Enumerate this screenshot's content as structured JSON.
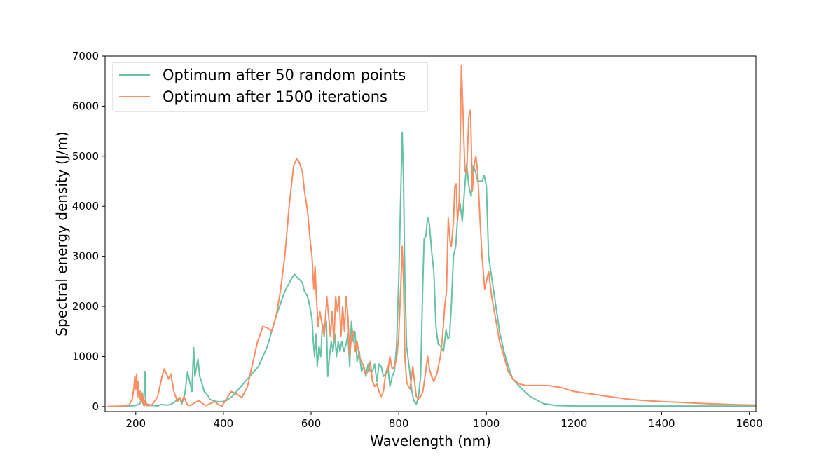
{
  "chart_data": {
    "type": "line",
    "title": "",
    "xlabel": "Wavelength (nm)",
    "ylabel": "Spectral energy density (J/m)",
    "xlim": [
      130,
      1615
    ],
    "ylim": [
      -100,
      7000
    ],
    "xticks": [
      200,
      400,
      600,
      800,
      1000,
      1200,
      1400,
      1600
    ],
    "yticks": [
      0,
      1000,
      2000,
      3000,
      4000,
      5000,
      6000,
      7000
    ],
    "grid": false,
    "legend_position": "top-left",
    "series": [
      {
        "name": "Optimum after 50 random points",
        "color": "#66c2a5",
        "points": [
          [
            135,
            0
          ],
          [
            180,
            10
          ],
          [
            200,
            20
          ],
          [
            210,
            60
          ],
          [
            215,
            250
          ],
          [
            218,
            20
          ],
          [
            221,
            700
          ],
          [
            223,
            100
          ],
          [
            226,
            20
          ],
          [
            240,
            20
          ],
          [
            250,
            10
          ],
          [
            258,
            40
          ],
          [
            270,
            30
          ],
          [
            280,
            40
          ],
          [
            290,
            100
          ],
          [
            300,
            180
          ],
          [
            305,
            50
          ],
          [
            312,
            250
          ],
          [
            318,
            700
          ],
          [
            323,
            500
          ],
          [
            328,
            300
          ],
          [
            332,
            1180
          ],
          [
            335,
            600
          ],
          [
            339,
            800
          ],
          [
            342,
            950
          ],
          [
            346,
            600
          ],
          [
            350,
            500
          ],
          [
            356,
            300
          ],
          [
            362,
            250
          ],
          [
            370,
            140
          ],
          [
            380,
            110
          ],
          [
            390,
            90
          ],
          [
            405,
            110
          ],
          [
            420,
            200
          ],
          [
            440,
            400
          ],
          [
            460,
            600
          ],
          [
            480,
            800
          ],
          [
            500,
            1200
          ],
          [
            520,
            1800
          ],
          [
            540,
            2300
          ],
          [
            555,
            2550
          ],
          [
            562,
            2640
          ],
          [
            568,
            2580
          ],
          [
            575,
            2520
          ],
          [
            580,
            2480
          ],
          [
            585,
            2300
          ],
          [
            592,
            2200
          ],
          [
            597,
            2000
          ],
          [
            602,
            1750
          ],
          [
            605,
            1300
          ],
          [
            608,
            1000
          ],
          [
            611,
            1450
          ],
          [
            614,
            800
          ],
          [
            618,
            1200
          ],
          [
            622,
            1000
          ],
          [
            626,
            1650
          ],
          [
            630,
            1500
          ],
          [
            635,
            1700
          ],
          [
            638,
            600
          ],
          [
            642,
            1000
          ],
          [
            646,
            1300
          ],
          [
            650,
            1100
          ],
          [
            654,
            1450
          ],
          [
            658,
            1000
          ],
          [
            662,
            1300
          ],
          [
            666,
            1100
          ],
          [
            670,
            1300
          ],
          [
            675,
            1100
          ],
          [
            680,
            1250
          ],
          [
            684,
            1450
          ],
          [
            688,
            800
          ],
          [
            692,
            1700
          ],
          [
            696,
            1300
          ],
          [
            700,
            1500
          ],
          [
            705,
            900
          ],
          [
            710,
            1100
          ],
          [
            715,
            700
          ],
          [
            720,
            800
          ],
          [
            725,
            600
          ],
          [
            730,
            850
          ],
          [
            735,
            700
          ],
          [
            740,
            700
          ],
          [
            745,
            850
          ],
          [
            750,
            500
          ],
          [
            755,
            850
          ],
          [
            760,
            800
          ],
          [
            765,
            600
          ],
          [
            770,
            650
          ],
          [
            775,
            800
          ],
          [
            780,
            400
          ],
          [
            785,
            600
          ],
          [
            790,
            700
          ],
          [
            795,
            1200
          ],
          [
            800,
            2500
          ],
          [
            804,
            4000
          ],
          [
            808,
            5480
          ],
          [
            811,
            4500
          ],
          [
            814,
            2500
          ],
          [
            818,
            1200
          ],
          [
            825,
            700
          ],
          [
            830,
            300
          ],
          [
            835,
            100
          ],
          [
            840,
            50
          ],
          [
            845,
            200
          ],
          [
            850,
            600
          ],
          [
            855,
            2500
          ],
          [
            858,
            3350
          ],
          [
            862,
            3400
          ],
          [
            866,
            3780
          ],
          [
            870,
            3650
          ],
          [
            875,
            3100
          ],
          [
            880,
            2700
          ],
          [
            885,
            1600
          ],
          [
            890,
            1250
          ],
          [
            896,
            1200
          ],
          [
            902,
            1100
          ],
          [
            908,
            1530
          ],
          [
            912,
            1350
          ],
          [
            916,
            1400
          ],
          [
            920,
            2000
          ],
          [
            925,
            3000
          ],
          [
            930,
            3200
          ],
          [
            935,
            3850
          ],
          [
            940,
            4050
          ],
          [
            945,
            3700
          ],
          [
            950,
            4300
          ],
          [
            955,
            4850
          ],
          [
            960,
            4400
          ],
          [
            965,
            4200
          ],
          [
            970,
            4800
          ],
          [
            975,
            4700
          ],
          [
            980,
            4500
          ],
          [
            990,
            4500
          ],
          [
            995,
            4620
          ],
          [
            1000,
            4400
          ],
          [
            1005,
            3000
          ],
          [
            1010,
            2700
          ],
          [
            1020,
            2100
          ],
          [
            1030,
            1500
          ],
          [
            1040,
            1100
          ],
          [
            1050,
            800
          ],
          [
            1060,
            550
          ],
          [
            1080,
            360
          ],
          [
            1100,
            200
          ],
          [
            1130,
            60
          ],
          [
            1160,
            20
          ],
          [
            1200,
            10
          ],
          [
            1400,
            10
          ],
          [
            1615,
            10
          ]
        ]
      },
      {
        "name": "Optimum after 1500 iterations",
        "color": "#fc8d62",
        "points": [
          [
            135,
            0
          ],
          [
            170,
            10
          ],
          [
            185,
            30
          ],
          [
            192,
            150
          ],
          [
            196,
            400
          ],
          [
            198,
            600
          ],
          [
            200,
            350
          ],
          [
            202,
            650
          ],
          [
            204,
            200
          ],
          [
            206,
            500
          ],
          [
            208,
            150
          ],
          [
            210,
            300
          ],
          [
            212,
            100
          ],
          [
            214,
            280
          ],
          [
            216,
            60
          ],
          [
            218,
            200
          ],
          [
            220,
            20
          ],
          [
            222,
            120
          ],
          [
            224,
            10
          ],
          [
            228,
            50
          ],
          [
            235,
            20
          ],
          [
            240,
            70
          ],
          [
            250,
            200
          ],
          [
            260,
            600
          ],
          [
            265,
            750
          ],
          [
            270,
            650
          ],
          [
            275,
            550
          ],
          [
            280,
            650
          ],
          [
            287,
            300
          ],
          [
            295,
            100
          ],
          [
            300,
            180
          ],
          [
            305,
            100
          ],
          [
            310,
            200
          ],
          [
            318,
            30
          ],
          [
            325,
            20
          ],
          [
            335,
            80
          ],
          [
            345,
            120
          ],
          [
            352,
            60
          ],
          [
            360,
            20
          ],
          [
            370,
            60
          ],
          [
            380,
            100
          ],
          [
            390,
            30
          ],
          [
            397,
            10
          ],
          [
            405,
            130
          ],
          [
            418,
            300
          ],
          [
            430,
            250
          ],
          [
            442,
            180
          ],
          [
            455,
            400
          ],
          [
            465,
            800
          ],
          [
            478,
            1300
          ],
          [
            490,
            1600
          ],
          [
            500,
            1570
          ],
          [
            510,
            1500
          ],
          [
            520,
            1800
          ],
          [
            530,
            2300
          ],
          [
            540,
            3000
          ],
          [
            550,
            4000
          ],
          [
            560,
            4800
          ],
          [
            567,
            4950
          ],
          [
            572,
            4900
          ],
          [
            580,
            4700
          ],
          [
            585,
            4300
          ],
          [
            592,
            3900
          ],
          [
            598,
            3300
          ],
          [
            602,
            3000
          ],
          [
            606,
            2350
          ],
          [
            609,
            2800
          ],
          [
            612,
            2200
          ],
          [
            616,
            1600
          ],
          [
            620,
            1900
          ],
          [
            626,
            1600
          ],
          [
            630,
            1400
          ],
          [
            636,
            2200
          ],
          [
            640,
            1800
          ],
          [
            644,
            1400
          ],
          [
            648,
            1900
          ],
          [
            652,
            1300
          ],
          [
            656,
            2200
          ],
          [
            660,
            1900
          ],
          [
            664,
            2200
          ],
          [
            668,
            1400
          ],
          [
            672,
            2000
          ],
          [
            676,
            1500
          ],
          [
            680,
            2200
          ],
          [
            684,
            1800
          ],
          [
            688,
            1000
          ],
          [
            692,
            1400
          ],
          [
            696,
            1500
          ],
          [
            700,
            1100
          ],
          [
            705,
            1300
          ],
          [
            710,
            1000
          ],
          [
            715,
            900
          ],
          [
            720,
            800
          ],
          [
            725,
            650
          ],
          [
            730,
            700
          ],
          [
            735,
            900
          ],
          [
            740,
            500
          ],
          [
            745,
            400
          ],
          [
            750,
            450
          ],
          [
            755,
            300
          ],
          [
            760,
            200
          ],
          [
            765,
            300
          ],
          [
            770,
            650
          ],
          [
            775,
            700
          ],
          [
            780,
            1000
          ],
          [
            785,
            750
          ],
          [
            790,
            800
          ],
          [
            795,
            950
          ],
          [
            800,
            1400
          ],
          [
            805,
            2500
          ],
          [
            808,
            3200
          ],
          [
            811,
            2500
          ],
          [
            814,
            1000
          ],
          [
            818,
            500
          ],
          [
            822,
            400
          ],
          [
            826,
            350
          ],
          [
            832,
            800
          ],
          [
            836,
            500
          ],
          [
            840,
            200
          ],
          [
            845,
            150
          ],
          [
            850,
            200
          ],
          [
            855,
            300
          ],
          [
            860,
            600
          ],
          [
            866,
            1000
          ],
          [
            870,
            750
          ],
          [
            875,
            600
          ],
          [
            880,
            500
          ],
          [
            887,
            650
          ],
          [
            895,
            1000
          ],
          [
            900,
            1400
          ],
          [
            905,
            2000
          ],
          [
            909,
            2300
          ],
          [
            913,
            3770
          ],
          [
            917,
            3300
          ],
          [
            920,
            3200
          ],
          [
            925,
            3700
          ],
          [
            928,
            4400
          ],
          [
            931,
            4450
          ],
          [
            934,
            3700
          ],
          [
            938,
            4100
          ],
          [
            943,
            6810
          ],
          [
            947,
            5800
          ],
          [
            951,
            4700
          ],
          [
            955,
            4650
          ],
          [
            960,
            5800
          ],
          [
            964,
            5920
          ],
          [
            968,
            4300
          ],
          [
            972,
            4800
          ],
          [
            976,
            5000
          ],
          [
            980,
            4700
          ],
          [
            985,
            3800
          ],
          [
            990,
            3000
          ],
          [
            996,
            2350
          ],
          [
            1000,
            2500
          ],
          [
            1005,
            2700
          ],
          [
            1012,
            2200
          ],
          [
            1020,
            1800
          ],
          [
            1030,
            1300
          ],
          [
            1040,
            1000
          ],
          [
            1050,
            700
          ],
          [
            1060,
            550
          ],
          [
            1075,
            450
          ],
          [
            1090,
            420
          ],
          [
            1110,
            420
          ],
          [
            1140,
            420
          ],
          [
            1170,
            380
          ],
          [
            1200,
            300
          ],
          [
            1240,
            250
          ],
          [
            1280,
            200
          ],
          [
            1320,
            150
          ],
          [
            1360,
            120
          ],
          [
            1400,
            100
          ],
          [
            1450,
            80
          ],
          [
            1500,
            60
          ],
          [
            1560,
            40
          ],
          [
            1615,
            30
          ]
        ]
      }
    ]
  }
}
